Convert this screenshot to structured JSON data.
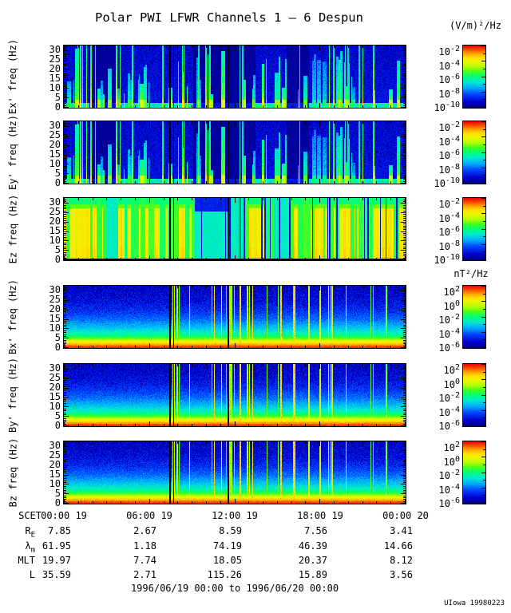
{
  "title": "Polar PWI LFWR Channels 1 – 6 Despun",
  "units": {
    "electric": "(V/m)²/Hz",
    "magnetic": "nT²/Hz"
  },
  "freq_ticks": [
    "30",
    "25",
    "20",
    "15",
    "10",
    "5",
    "0"
  ],
  "colorbar": {
    "electric": [
      {
        "base": "10",
        "exp": "-2"
      },
      {
        "base": "10",
        "exp": "-4"
      },
      {
        "base": "10",
        "exp": "-6"
      },
      {
        "base": "10",
        "exp": "-8"
      },
      {
        "base": "10",
        "exp": "-10"
      }
    ],
    "magnetic": [
      {
        "base": "10",
        "exp": "2"
      },
      {
        "base": "10",
        "exp": "0"
      },
      {
        "base": "10",
        "exp": "-2"
      },
      {
        "base": "10",
        "exp": "-4"
      },
      {
        "base": "10",
        "exp": "-6"
      }
    ]
  },
  "panels": [
    {
      "label": "Ex' freq (Hz)",
      "style": "E"
    },
    {
      "label": "Ey' freq (Hz)",
      "style": "E"
    },
    {
      "label": "Ez freq (Hz)",
      "style": "Ez"
    },
    {
      "label": "Bx' freq (Hz)",
      "style": "B"
    },
    {
      "label": "By' freq (Hz)",
      "style": "B"
    },
    {
      "label": "Bz freq (Hz)",
      "style": "B"
    }
  ],
  "xaxis": {
    "label": "SCET",
    "ticks": [
      "00:00 19",
      "06:00 19",
      "12:00 19",
      "18:00 19",
      "00:00 20"
    ]
  },
  "ephemeris": [
    {
      "label": {
        "base": "R",
        "sub": "E"
      },
      "values": [
        "7.85",
        "2.67",
        "8.59",
        "7.56",
        "3.41"
      ]
    },
    {
      "label": {
        "base": "λ",
        "sub": "m"
      },
      "values": [
        "61.95",
        "1.18",
        "74.19",
        "46.39",
        "14.66"
      ]
    },
    {
      "label": {
        "base": "MLT",
        "sub": ""
      },
      "values": [
        "19.97",
        "7.74",
        "18.05",
        "20.37",
        "8.12"
      ]
    },
    {
      "label": {
        "base": "L",
        "sub": ""
      },
      "values": [
        "35.59",
        "2.71",
        "115.26",
        "15.89",
        "3.56"
      ]
    }
  ],
  "footer": "1996/06/19 00:00 to 1996/06/20 00:00",
  "credit": "UIowa 19980223",
  "colors": {
    "frame": "#000000",
    "colormap_low": "#000082",
    "colormap_mid": "#00ff78",
    "colormap_high": "#e10000"
  },
  "chart_data": {
    "type": "heatmap",
    "title": "Polar PWI LFWR Channels 1 – 6 Despun",
    "layout": "six stacked time-frequency spectrogram panels sharing one time axis, each with its own rainbow colorbar at right",
    "x_axis": {
      "label": "SCET",
      "tick_labels": [
        "00:00 19",
        "06:00 19",
        "12:00 19",
        "18:00 19",
        "00:00 20"
      ],
      "range": [
        "1996/06/19 00:00",
        "1996/06/20 00:00"
      ],
      "minor_tick_interval_hours": 1,
      "major_tick_interval_hours": 6
    },
    "y_axis": {
      "label": "freq (Hz)",
      "tick_values": [
        0,
        5,
        10,
        15,
        20,
        25,
        30
      ],
      "range": [
        0,
        32
      ]
    },
    "panels": [
      {
        "name": "Ex'",
        "units": "(V/m)²/Hz",
        "colorbar_decades": [
          0.01,
          0.0001,
          1e-06,
          1e-08,
          1e-10
        ],
        "description": "dark-blue noisy background, green band below ~3 Hz, many bright green/cyan vertical emission streaks"
      },
      {
        "name": "Ey'",
        "units": "(V/m)²/Hz",
        "colorbar_decades": [
          0.01,
          0.0001,
          1e-06,
          1e-08,
          1e-10
        ],
        "description": "same appearance as Ex' panel"
      },
      {
        "name": "Ez",
        "units": "(V/m)²/Hz",
        "colorbar_decades": [
          0.01,
          0.0001,
          1e-06,
          1e-08,
          1e-10
        ],
        "description": "high broadband level: yellow/orange body with green columns, green-cyan band at top, scattered thin blue dropouts"
      },
      {
        "name": "Bx'",
        "units": "nT²/Hz",
        "colorbar_decades": [
          100.0,
          1.0,
          0.01,
          0.0001,
          1e-06
        ],
        "description": "vertical gradient from dark blue (30 Hz) through cyan/green to orange-red near 0 Hz, sparse bright full-height spikes"
      },
      {
        "name": "By'",
        "units": "nT²/Hz",
        "colorbar_decades": [
          100.0,
          1.0,
          0.01,
          0.0001,
          1e-06
        ],
        "description": "same gradient and spike pattern as Bx'"
      },
      {
        "name": "Bz",
        "units": "nT²/Hz",
        "colorbar_decades": [
          100.0,
          1.0,
          0.01,
          0.0001,
          1e-06
        ],
        "description": "same gradient and spike pattern as Bx'"
      }
    ],
    "data_gap_lines_fraction_of_x": [
      0.309,
      0.3215,
      0.48
    ],
    "ephemeris_table": {
      "columns": [
        "00:00 19",
        "06:00 19",
        "12:00 19",
        "18:00 19",
        "00:00 20"
      ],
      "rows": [
        {
          "label": "R_E",
          "values": [
            7.85,
            2.67,
            8.59,
            7.56,
            3.41
          ]
        },
        {
          "label": "λ_m",
          "values": [
            61.95,
            1.18,
            74.19,
            46.39,
            14.66
          ]
        },
        {
          "label": "MLT",
          "values": [
            19.97,
            7.74,
            18.05,
            20.37,
            8.12
          ]
        },
        {
          "label": "L",
          "values": [
            35.59,
            2.71,
            115.26,
            15.89,
            3.56
          ]
        }
      ]
    },
    "credit": "UIowa 19980223"
  }
}
